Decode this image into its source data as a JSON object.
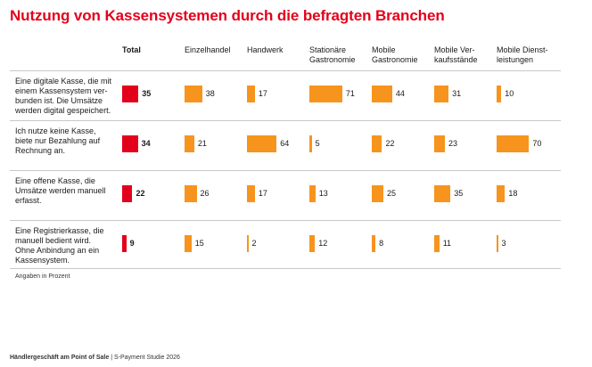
{
  "title": "Nutzung von Kassensystemen durch die befragten Branchen",
  "note": "Angaben in Prozent",
  "footer": {
    "bold": "Händlergeschäft am Point of Sale",
    "sep": "|",
    "rest": "S-Payment Studie 2026"
  },
  "colors": {
    "title": "#e3001b",
    "total_bar": "#e3001b",
    "segment_bar": "#f7941d"
  },
  "chart_data": {
    "type": "bar",
    "title": "Nutzung von Kassensystemen durch die befragten Branchen",
    "unit": "Angaben in Prozent",
    "columns": [
      [
        "Total"
      ],
      [
        "Einzelhandel"
      ],
      [
        "Handwerk"
      ],
      [
        "Stationäre",
        "Gastronomie"
      ],
      [
        "Mobile",
        "Gastronomie"
      ],
      [
        "Mobile Ver-",
        "kaufsstände"
      ],
      [
        "Mobile Dienst-",
        "leistungen"
      ]
    ],
    "rows": [
      {
        "label": [
          "Eine digitale Kasse, die mit",
          "einem Kassensystem ver-",
          "bunden ist. Die Umsätze",
          "werden digital gespeichert."
        ],
        "values": [
          35,
          38,
          17,
          71,
          44,
          31,
          10
        ]
      },
      {
        "label": [
          "Ich nutze keine Kasse,",
          "biete nur Bezahlung auf",
          "Rechnung an."
        ],
        "values": [
          34,
          21,
          64,
          5,
          22,
          23,
          70
        ]
      },
      {
        "label": [
          "Eine offene Kasse, die",
          "Umsätze werden manuell",
          "erfasst."
        ],
        "values": [
          22,
          26,
          17,
          13,
          25,
          35,
          18
        ]
      },
      {
        "label": [
          "Eine Registrierkasse, die",
          "manuell bedient wird.",
          "Ohne Anbindung an ein",
          "Kassensystem."
        ],
        "values": [
          9,
          15,
          2,
          12,
          8,
          11,
          3
        ]
      }
    ]
  }
}
